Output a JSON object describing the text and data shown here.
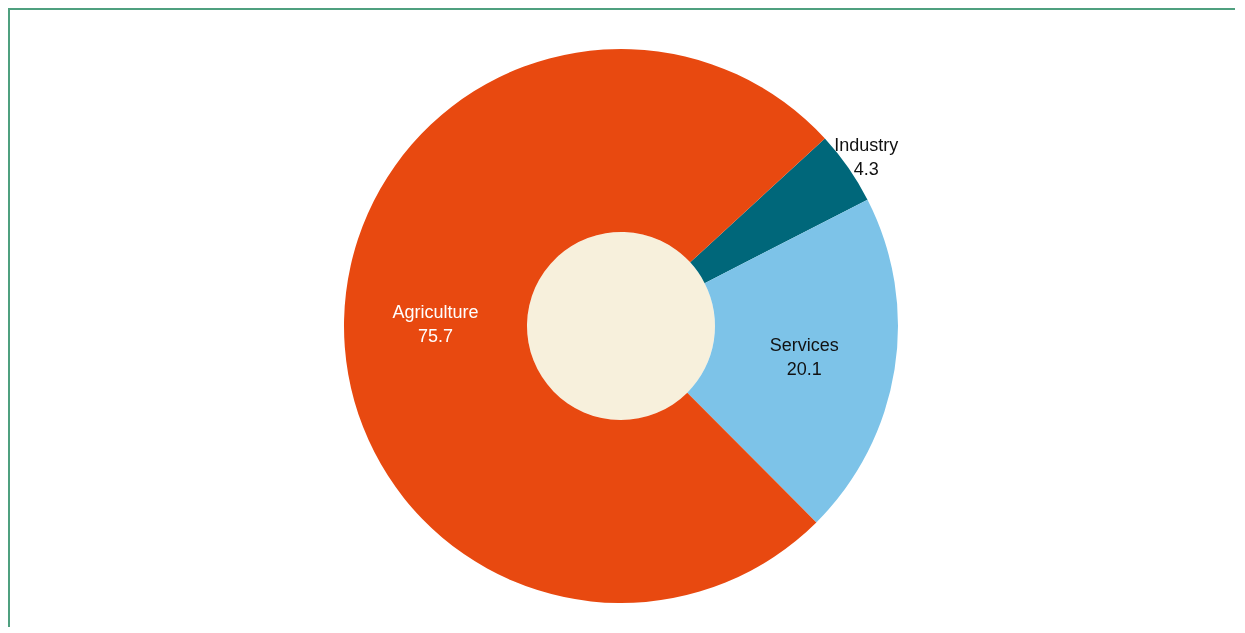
{
  "chart_data": {
    "type": "donut",
    "categories": [
      "Industry",
      "Services",
      "Agriculture"
    ],
    "values": [
      4.3,
      20.1,
      75.7
    ],
    "colors": [
      "#00677a",
      "#7dc3e8",
      "#e84910"
    ],
    "data_labels": true
  }
}
